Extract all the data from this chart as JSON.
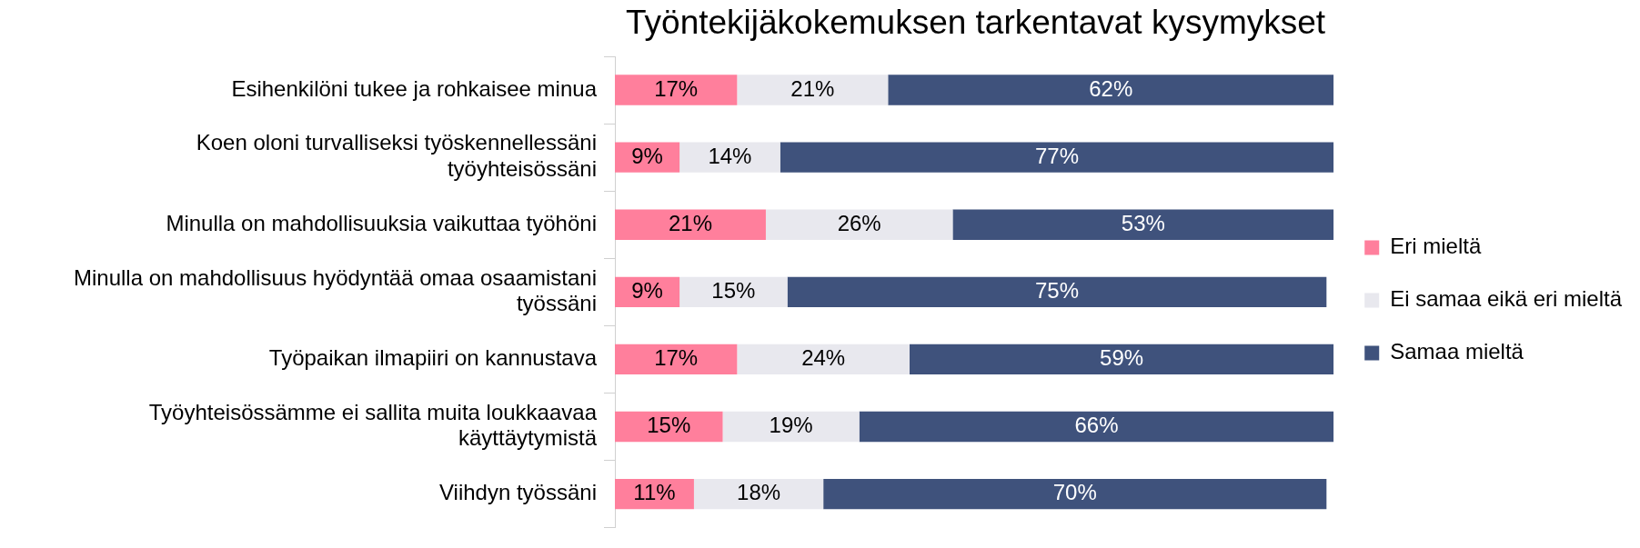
{
  "chart_data": {
    "type": "bar",
    "orientation": "horizontal",
    "stacked": true,
    "title": "Työntekijäkokemuksen tarkentavat kysymykset",
    "categories": [
      "Esihenkilöni tukee ja rohkaisee minua",
      "Koen oloni turvalliseksi työskennellessäni työyhteisössäni",
      "Minulla on mahdollisuuksia vaikuttaa työhöni",
      "Minulla on mahdollisuus hyödyntää omaa osaamistani työssäni",
      "Työpaikan ilmapiiri on kannustava",
      "Työyhteisössämme ei sallita muita loukkaavaa käyttäytymistä",
      "Viihdyn työssäni"
    ],
    "series": [
      {
        "name": "Eri mieltä",
        "color": "#ff7f9c",
        "values": [
          17,
          9,
          21,
          9,
          17,
          15,
          11
        ],
        "value_labels": [
          "17%",
          "9%",
          "21%",
          "9%",
          "17%",
          "15%",
          "11%"
        ]
      },
      {
        "name": "Ei samaa eikä eri mieltä",
        "color": "#e8e8ee",
        "values": [
          21,
          14,
          26,
          15,
          24,
          19,
          18
        ],
        "value_labels": [
          "21%",
          "14%",
          "26%",
          "15%",
          "24%",
          "19%",
          "18%"
        ]
      },
      {
        "name": "Samaa mieltä",
        "color": "#3f527c",
        "values": [
          62,
          77,
          53,
          75,
          59,
          66,
          70
        ],
        "value_labels": [
          "62%",
          "77%",
          "53%",
          "75%",
          "59%",
          "66%",
          "70%"
        ]
      }
    ],
    "xlim": [
      0,
      100
    ],
    "tick_labels": "y",
    "legend": "right"
  }
}
